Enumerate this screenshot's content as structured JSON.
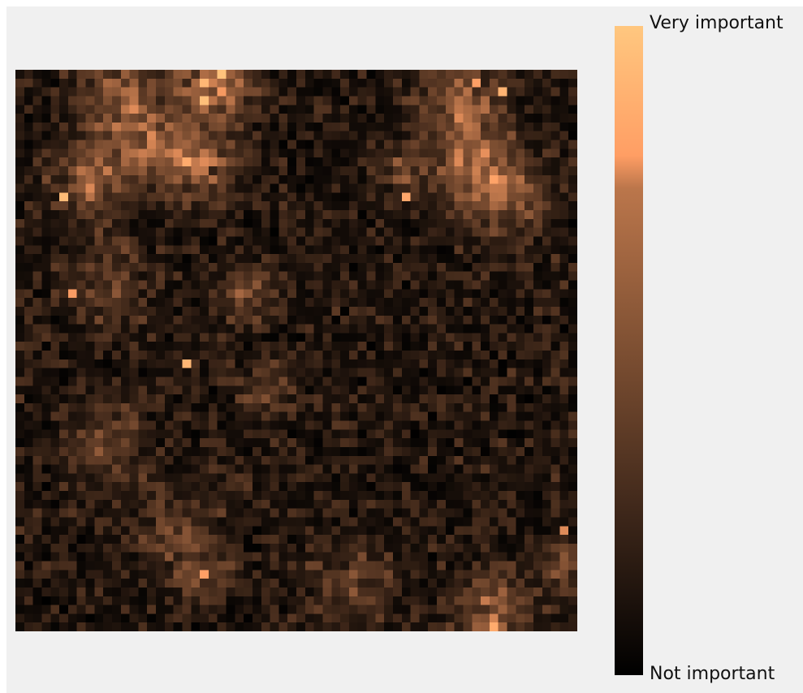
{
  "chart_data": {
    "type": "heatmap",
    "title": "",
    "xlabel": "",
    "ylabel": "",
    "grid": false,
    "axes_visible": false,
    "rows": 64,
    "cols": 64,
    "colormap": "copper",
    "value_range": [
      0,
      1
    ],
    "colorbar": {
      "position": "right",
      "top_label": "Very important",
      "bottom_label": "Not important"
    },
    "seed": 7,
    "noise_base": 0.07,
    "noise_spread": 0.22,
    "hotspots": [
      {
        "row": 2,
        "col": 11,
        "radius": 3,
        "strength": 0.4
      },
      {
        "row": 1,
        "col": 22,
        "radius": 3,
        "strength": 0.55
      },
      {
        "row": 3,
        "col": 50,
        "radius": 3,
        "strength": 0.45
      },
      {
        "row": 8,
        "col": 14,
        "radius": 3,
        "strength": 0.38
      },
      {
        "row": 10,
        "col": 20,
        "radius": 3,
        "strength": 0.4
      },
      {
        "row": 12,
        "col": 8,
        "radius": 3,
        "strength": 0.42
      },
      {
        "row": 10,
        "col": 52,
        "radius": 3,
        "strength": 0.45
      },
      {
        "row": 14,
        "col": 55,
        "radius": 3,
        "strength": 0.38
      },
      {
        "row": 11,
        "col": 44,
        "radius": 2,
        "strength": 0.28
      },
      {
        "row": 24,
        "col": 10,
        "radius": 3,
        "strength": 0.25
      },
      {
        "row": 25,
        "col": 26,
        "radius": 2,
        "strength": 0.3
      },
      {
        "row": 36,
        "col": 28,
        "radius": 2,
        "strength": 0.26
      },
      {
        "row": 42,
        "col": 10,
        "radius": 3,
        "strength": 0.25
      },
      {
        "row": 52,
        "col": 18,
        "radius": 3,
        "strength": 0.28
      },
      {
        "row": 58,
        "col": 38,
        "radius": 3,
        "strength": 0.28
      },
      {
        "row": 57,
        "col": 21,
        "radius": 2,
        "strength": 0.28
      },
      {
        "row": 61,
        "col": 54,
        "radius": 3,
        "strength": 0.38
      },
      {
        "row": 56,
        "col": 62,
        "radius": 2,
        "strength": 0.22
      }
    ],
    "peaks": [
      {
        "row": 0,
        "col": 23,
        "value": 0.98
      },
      {
        "row": 1,
        "col": 21,
        "value": 0.92
      },
      {
        "row": 3,
        "col": 21,
        "value": 0.96
      },
      {
        "row": 2,
        "col": 55,
        "value": 0.9
      },
      {
        "row": 1,
        "col": 52,
        "value": 0.8
      },
      {
        "row": 10,
        "col": 19,
        "value": 0.86
      },
      {
        "row": 14,
        "col": 5,
        "value": 0.94
      },
      {
        "row": 14,
        "col": 44,
        "value": 0.84
      },
      {
        "row": 12,
        "col": 54,
        "value": 0.82
      },
      {
        "row": 25,
        "col": 6,
        "value": 0.78
      },
      {
        "row": 33,
        "col": 19,
        "value": 0.92
      },
      {
        "row": 57,
        "col": 21,
        "value": 0.8
      },
      {
        "row": 63,
        "col": 54,
        "value": 0.86
      },
      {
        "row": 52,
        "col": 62,
        "value": 0.7
      }
    ]
  }
}
